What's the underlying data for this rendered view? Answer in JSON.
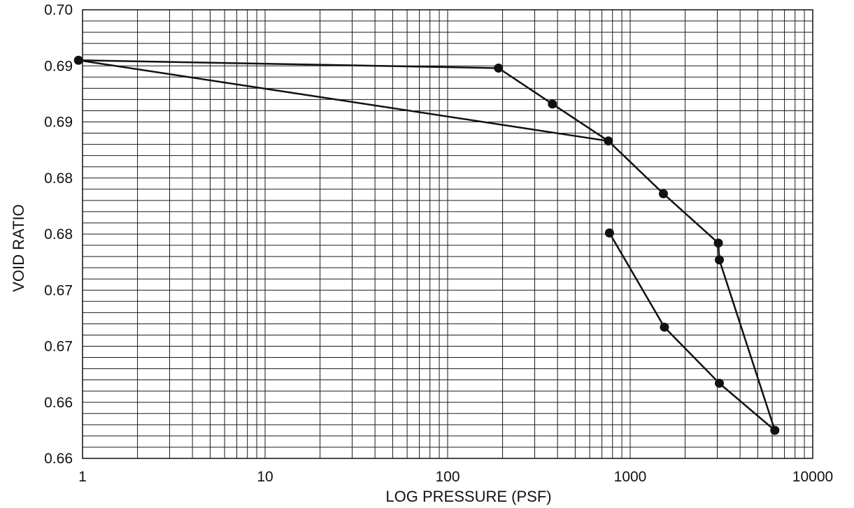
{
  "chart_data": {
    "type": "line",
    "title": "",
    "xlabel": "LOG PRESSURE (PSF)",
    "ylabel": "VOID RATIO",
    "x_scale": "log",
    "xlim": [
      1,
      10000
    ],
    "ylim": [
      0.66,
      0.7
    ],
    "x_tick_values": [
      1,
      10,
      100,
      1000,
      10000
    ],
    "x_tick_labels": [
      "1",
      "10",
      "100",
      "1000",
      "10000"
    ],
    "y_tick_values": [
      0.66,
      0.665,
      0.67,
      0.675,
      0.68,
      0.685,
      0.69,
      0.695,
      0.7
    ],
    "y_tick_labels": [
      "0.66",
      "0.66",
      "0.67",
      "0.67",
      "0.68",
      "0.68",
      "0.69",
      "0.69",
      "0.70"
    ],
    "grid": true,
    "legend": "none",
    "marker": "filled-circle",
    "line_color": "#111111",
    "series": [
      {
        "x": [
          0.95,
          190,
          375,
          760,
          1520,
          3040,
          3080,
          6200,
          3080,
          1540,
          770
        ],
        "y": [
          0.6955,
          0.6948,
          0.6916,
          0.6883,
          0.6836,
          0.6792,
          0.6777,
          0.6625,
          0.6667,
          0.6717,
          0.6801
        ]
      },
      {
        "x": [
          0.95,
          760
        ],
        "y": [
          0.6955,
          0.6883
        ]
      }
    ]
  }
}
